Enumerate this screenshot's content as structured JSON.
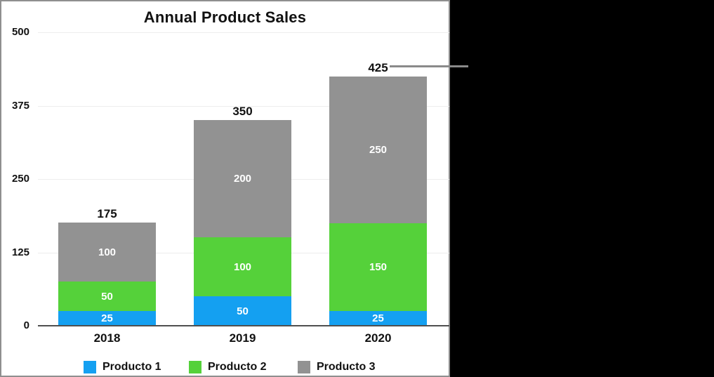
{
  "chart_data": {
    "type": "bar",
    "stacked": true,
    "title": "Annual Product Sales",
    "categories": [
      "2018",
      "2019",
      "2020"
    ],
    "series": [
      {
        "name": "Producto 1",
        "color": "#14a0f1",
        "values": [
          25,
          50,
          25
        ]
      },
      {
        "name": "Producto 2",
        "color": "#55d13a",
        "values": [
          50,
          100,
          150
        ]
      },
      {
        "name": "Producto 3",
        "color": "#929292",
        "values": [
          100,
          200,
          250
        ]
      }
    ],
    "totals": [
      175,
      350,
      425
    ],
    "y_ticks": [
      0,
      125,
      250,
      375,
      500
    ],
    "ylim": [
      0,
      500
    ],
    "grid": true,
    "legend_position": "bottom",
    "annotation": {
      "type": "callout-line",
      "text": "425",
      "attached_to": "2020 total label",
      "points_to": "side panel"
    },
    "colors": {
      "grid": "#ededed",
      "axis": "#4f4f4f",
      "callout": "#8a8a8a",
      "label_on_bar": "#ffffff",
      "text": "#111111",
      "panel_border": "#8f8f8f",
      "side_panel": "#000000",
      "background": "#ffffff"
    }
  }
}
